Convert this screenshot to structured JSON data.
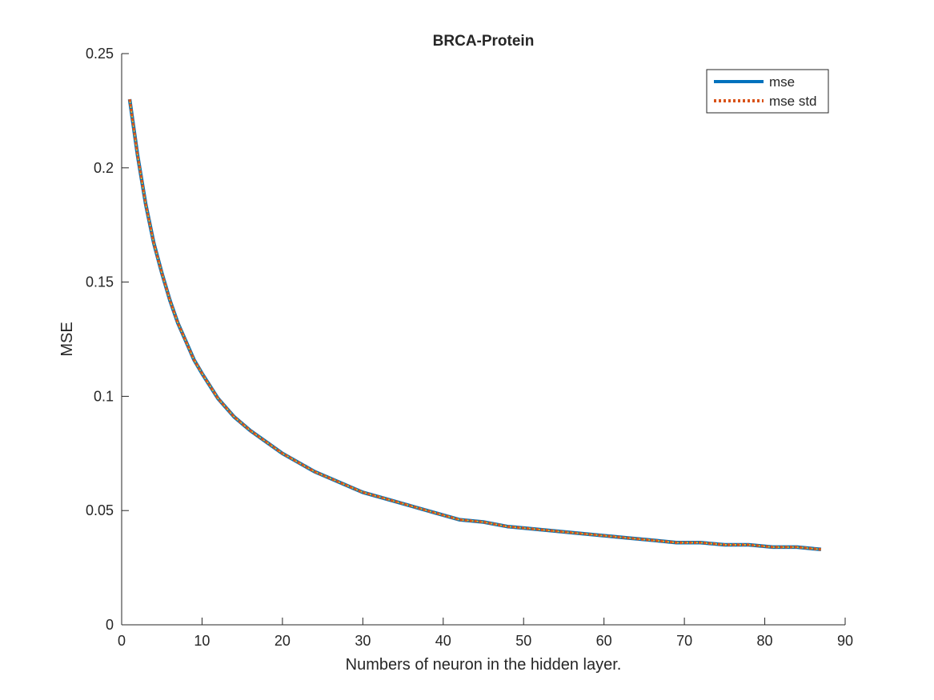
{
  "chart_data": {
    "type": "line",
    "title": "BRCA-Protein",
    "xlabel": "Numbers of neuron in the hidden layer.",
    "ylabel": "MSE",
    "xlim": [
      0,
      90
    ],
    "ylim": [
      0,
      0.25
    ],
    "xticks": [
      0,
      10,
      20,
      30,
      40,
      50,
      60,
      70,
      80,
      90
    ],
    "xtick_labels": [
      "0",
      "10",
      "20",
      "30",
      "40",
      "50",
      "60",
      "70",
      "80",
      "90"
    ],
    "yticks": [
      0,
      0.05,
      0.1,
      0.15,
      0.2,
      0.25
    ],
    "ytick_labels": [
      "0",
      "0.05",
      "0.1",
      "0.15",
      "0.2",
      "0.25"
    ],
    "grid": false,
    "legend_position": "top-right",
    "x": [
      1,
      2,
      3,
      4,
      5,
      6,
      7,
      8,
      9,
      10,
      12,
      14,
      16,
      18,
      20,
      22,
      24,
      26,
      28,
      30,
      33,
      36,
      39,
      42,
      45,
      48,
      51,
      54,
      57,
      60,
      63,
      66,
      69,
      72,
      75,
      78,
      81,
      84,
      87
    ],
    "series": [
      {
        "name": "mse",
        "color": "#0072BD",
        "style": "solid",
        "values": [
          0.23,
          0.205,
          0.184,
          0.167,
          0.154,
          0.142,
          0.132,
          0.124,
          0.116,
          0.11,
          0.099,
          0.091,
          0.085,
          0.08,
          0.075,
          0.071,
          0.067,
          0.064,
          0.061,
          0.058,
          0.055,
          0.052,
          0.049,
          0.046,
          0.045,
          0.043,
          0.042,
          0.041,
          0.04,
          0.039,
          0.038,
          0.037,
          0.036,
          0.036,
          0.035,
          0.035,
          0.034,
          0.034,
          0.033
        ]
      },
      {
        "name": "mse std",
        "color": "#D95319",
        "style": "dotted",
        "values": [
          0.23,
          0.205,
          0.184,
          0.167,
          0.154,
          0.142,
          0.132,
          0.124,
          0.116,
          0.11,
          0.099,
          0.091,
          0.085,
          0.08,
          0.075,
          0.071,
          0.067,
          0.064,
          0.061,
          0.058,
          0.055,
          0.052,
          0.049,
          0.046,
          0.045,
          0.043,
          0.042,
          0.041,
          0.04,
          0.039,
          0.038,
          0.037,
          0.036,
          0.036,
          0.035,
          0.035,
          0.034,
          0.034,
          0.033
        ]
      }
    ],
    "overlay_dot_color": "#EDB120"
  }
}
